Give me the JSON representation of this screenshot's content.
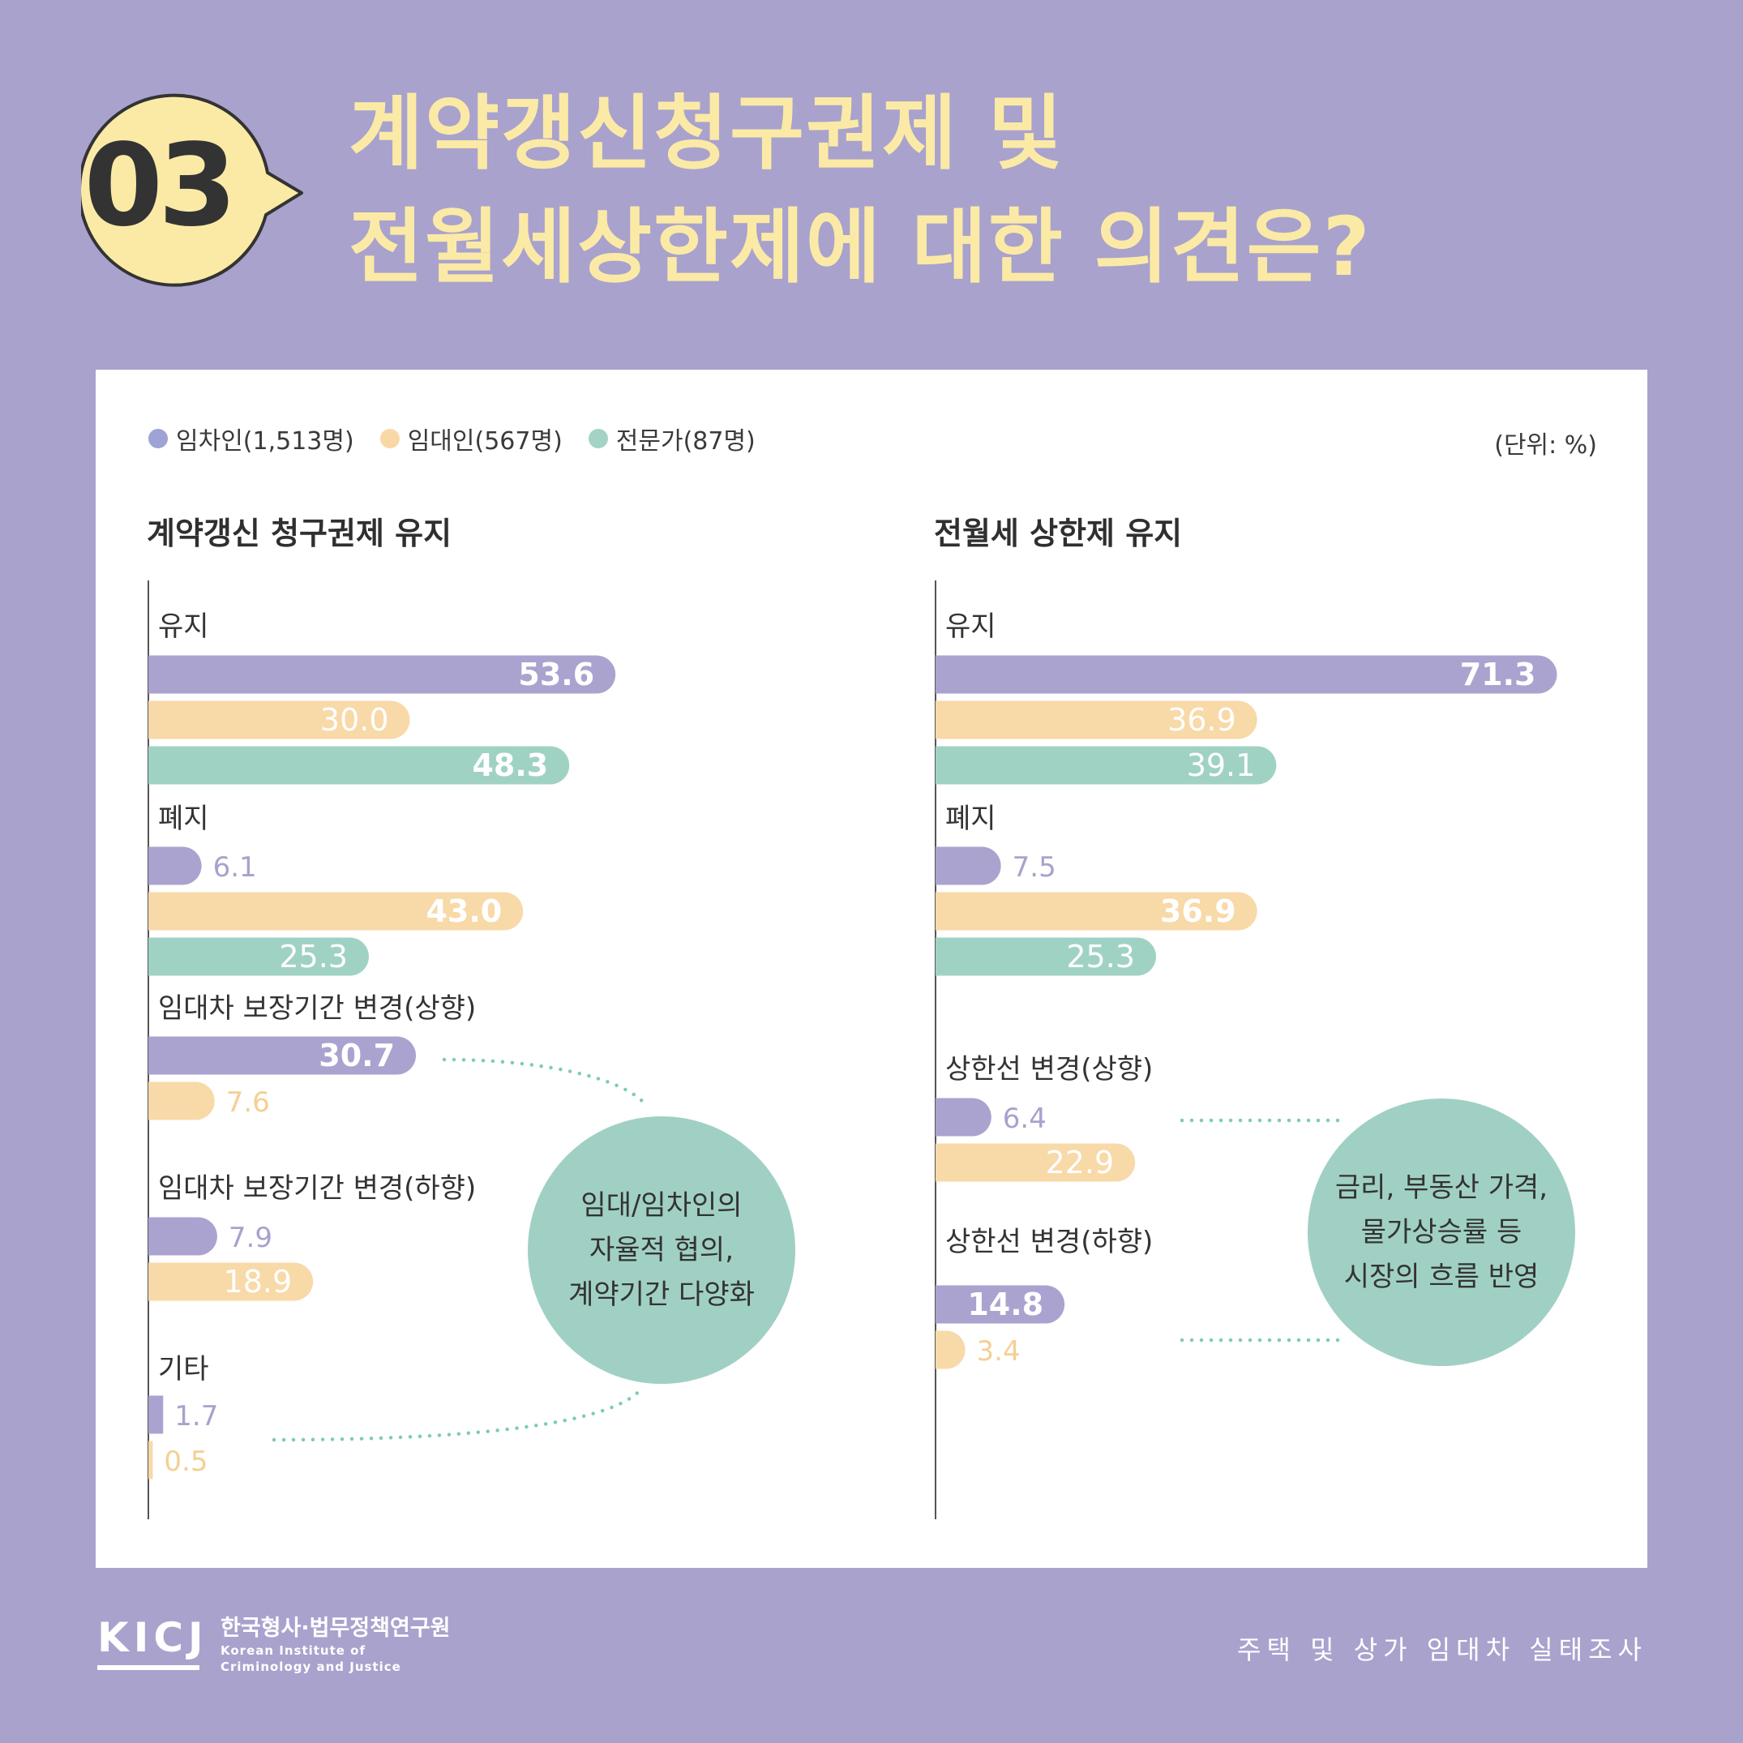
{
  "badge": {
    "number": "03"
  },
  "title": {
    "line1": "계약갱신청구권제 및",
    "line2": "전월세상한제에 대한 의견은?"
  },
  "legend": [
    {
      "label": "임차인(1,513명)",
      "color": "#9ea3d5"
    },
    {
      "label": "임대인(567명)",
      "color": "#f9d8a6"
    },
    {
      "label": "전문가(87명)",
      "color": "#a2d3c5"
    }
  ],
  "unit": "(단위: %)",
  "colors": {
    "tenant": "#aaa3cf",
    "landlord": "#f8d9a8",
    "expert": "#a0d2c4",
    "tenant_label": "#a7a2cc",
    "landlord_label": "#f5cf93",
    "bubble": "#a0d0c3"
  },
  "chart_data": [
    {
      "type": "bar",
      "title": "계약갱신 청구권제 유지",
      "series_names": [
        "임차인(1,513명)",
        "임대인(567명)",
        "전문가(87명)"
      ],
      "groups": [
        {
          "label": "유지",
          "values": [
            53.6,
            30.0,
            48.3
          ],
          "labels": [
            "53.6",
            "30.0",
            "48.3"
          ]
        },
        {
          "label": "폐지",
          "values": [
            6.1,
            43.0,
            25.3
          ],
          "labels": [
            "6.1",
            "43.0",
            "25.3"
          ]
        },
        {
          "label": "임대차 보장기간 변경(상향)",
          "values": [
            30.7,
            7.6
          ],
          "labels": [
            "30.7",
            "7.6"
          ]
        },
        {
          "label": "임대차 보장기간 변경(하향)",
          "values": [
            7.9,
            18.9
          ],
          "labels": [
            "7.9",
            "18.9"
          ]
        },
        {
          "label": "기타",
          "values": [
            1.7,
            0.5
          ],
          "labels": [
            "1.7",
            "0.5"
          ]
        }
      ],
      "annotation": [
        "임대/임차인의",
        "자율적 협의,",
        "계약기간 다양화"
      ]
    },
    {
      "type": "bar",
      "title": "전월세 상한제 유지",
      "series_names": [
        "임차인(1,513명)",
        "임대인(567명)",
        "전문가(87명)"
      ],
      "groups": [
        {
          "label": "유지",
          "values": [
            71.3,
            36.9,
            39.1
          ],
          "labels": [
            "71.3",
            "36.9",
            "39.1"
          ]
        },
        {
          "label": "폐지",
          "values": [
            7.5,
            36.9,
            25.3
          ],
          "labels": [
            "7.5",
            "36.9",
            "25.3"
          ]
        },
        {
          "label": "상한선 변경(상향)",
          "values": [
            6.4,
            22.9
          ],
          "labels": [
            "6.4",
            "22.9"
          ]
        },
        {
          "label": "상한선 변경(하향)",
          "values": [
            14.8,
            3.4
          ],
          "labels": [
            "14.8",
            "3.4"
          ]
        }
      ],
      "annotation": [
        "금리, 부동산 가격,",
        "물가상승률 등",
        "시장의 흐름 반영"
      ]
    }
  ],
  "footer": {
    "logo": "KICJ",
    "org_ko": "한국형사·법무정책연구원",
    "org_en_1": "Korean Institute of",
    "org_en_2": "Criminology and Justice",
    "right": "주택 및 상가 임대차 실태조사"
  }
}
